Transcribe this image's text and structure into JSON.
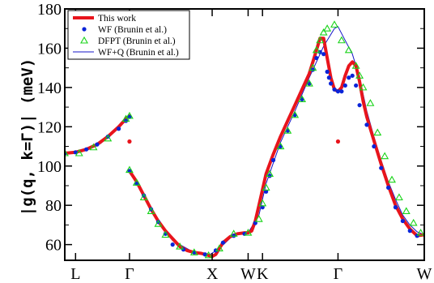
{
  "chart_data": {
    "type": "line",
    "title": "",
    "xlabel": "",
    "ylabel": "|g(q, k=Γ)| (meV)",
    "ylim": [
      52,
      180
    ],
    "yticks": [
      60,
      80,
      100,
      120,
      140,
      160,
      180
    ],
    "xlim": [
      0,
      100
    ],
    "xticks": [
      {
        "label": "L",
        "x": 3
      },
      {
        "label": "Γ",
        "x": 18
      },
      {
        "label": "X",
        "x": 41
      },
      {
        "label": "W",
        "x": 51
      },
      {
        "label": "K",
        "x": 55
      },
      {
        "label": "Γ",
        "x": 76
      },
      {
        "label": "W",
        "x": 100
      }
    ],
    "grid": false,
    "legend_position": "top-left",
    "colors": {
      "this_work": "#e8141c",
      "wf": "#0a24d8",
      "dfpt": "#18d418",
      "wfq": "#1414c8"
    },
    "series": [
      {
        "name": "This work",
        "style": "thick-line",
        "segments": [
          [
            [
              0,
              106.5
            ],
            [
              3,
              107
            ],
            [
              6,
              108.5
            ],
            [
              9,
              111
            ],
            [
              12,
              115
            ],
            [
              15,
              120
            ],
            [
              17,
              124
            ],
            [
              18,
              125.5
            ]
          ],
          [
            [
              18,
              97.5
            ],
            [
              20,
              92
            ],
            [
              22,
              85
            ],
            [
              24,
              78
            ],
            [
              26,
              72
            ],
            [
              28,
              67
            ],
            [
              30,
              63
            ],
            [
              32,
              59
            ],
            [
              34,
              57
            ],
            [
              36,
              56
            ],
            [
              38,
              55.5
            ],
            [
              40,
              54.5
            ],
            [
              41,
              54
            ],
            [
              42,
              55
            ],
            [
              43,
              58
            ],
            [
              44,
              61
            ],
            [
              46,
              64
            ],
            [
              48,
              65.5
            ],
            [
              50,
              66
            ],
            [
              51,
              66
            ],
            [
              52,
              67
            ],
            [
              53,
              72
            ],
            [
              54,
              80
            ],
            [
              55,
              88
            ],
            [
              56,
              96
            ],
            [
              58,
              106
            ],
            [
              60,
              115
            ],
            [
              62,
              123
            ],
            [
              64,
              131
            ],
            [
              66,
              139
            ],
            [
              68,
              147
            ],
            [
              69,
              153
            ],
            [
              70,
              159
            ],
            [
              71,
              165
            ],
            [
              72,
              165
            ],
            [
              73,
              155
            ],
            [
              74,
              145
            ],
            [
              75,
              139
            ],
            [
              76,
              138
            ],
            [
              77,
              140
            ],
            [
              78,
              146
            ],
            [
              79,
              151
            ],
            [
              80,
              153
            ],
            [
              81,
              151
            ],
            [
              82,
              143
            ],
            [
              83,
              133
            ],
            [
              84,
              125
            ],
            [
              86,
              113
            ],
            [
              88,
              101
            ],
            [
              90,
              90
            ],
            [
              92,
              80
            ],
            [
              94,
              73
            ],
            [
              96,
              68
            ],
            [
              98,
              64.5
            ],
            [
              100,
              65
            ]
          ]
        ],
        "isolated_points": [
          [
            18,
            112.5
          ],
          [
            76,
            112.5
          ]
        ]
      },
      {
        "name": "WF (Brunin et al.)",
        "style": "filled-circle",
        "points": [
          [
            0,
            106.5
          ],
          [
            3,
            107
          ],
          [
            6,
            108.5
          ],
          [
            9,
            111
          ],
          [
            12,
            115
          ],
          [
            15,
            119
          ],
          [
            17,
            123
          ],
          [
            18,
            125
          ],
          [
            18,
            97.5
          ],
          [
            20,
            91
          ],
          [
            22,
            85
          ],
          [
            24,
            78
          ],
          [
            26,
            71.5
          ],
          [
            28,
            65.5
          ],
          [
            30,
            60
          ],
          [
            33,
            57.5
          ],
          [
            36,
            56
          ],
          [
            39,
            55
          ],
          [
            42,
            57
          ],
          [
            44,
            61
          ],
          [
            47,
            64.5
          ],
          [
            50,
            65.5
          ],
          [
            53,
            71
          ],
          [
            55,
            79
          ],
          [
            56,
            87
          ],
          [
            57,
            95
          ],
          [
            58,
            103
          ],
          [
            60,
            110
          ],
          [
            62,
            118
          ],
          [
            64,
            126
          ],
          [
            66,
            134
          ],
          [
            68,
            142
          ],
          [
            69,
            149
          ],
          [
            70,
            155
          ],
          [
            71,
            158
          ],
          [
            72,
            157
          ],
          [
            73,
            148
          ],
          [
            73.5,
            145
          ],
          [
            74,
            142
          ],
          [
            75,
            139
          ],
          [
            76,
            138
          ],
          [
            77,
            138
          ],
          [
            78,
            141
          ],
          [
            79,
            145
          ],
          [
            80,
            146
          ],
          [
            81,
            141
          ],
          [
            82,
            131
          ],
          [
            84,
            121
          ],
          [
            86,
            110
          ],
          [
            88,
            99
          ],
          [
            90,
            89
          ],
          [
            92,
            79
          ],
          [
            94,
            72
          ],
          [
            96,
            67
          ],
          [
            98,
            64.5
          ]
        ]
      },
      {
        "name": "DFPT (Brunin et al.)",
        "style": "open-triangle",
        "points": [
          [
            0,
            106.5
          ],
          [
            4,
            106.5
          ],
          [
            8,
            109.5
          ],
          [
            12,
            114
          ],
          [
            17,
            124
          ],
          [
            18,
            125.5
          ],
          [
            18,
            98
          ],
          [
            20,
            91.5
          ],
          [
            22,
            84
          ],
          [
            24,
            77
          ],
          [
            26,
            70.5
          ],
          [
            28,
            65
          ],
          [
            32,
            59
          ],
          [
            36,
            56
          ],
          [
            40,
            54.5
          ],
          [
            43,
            58
          ],
          [
            47,
            65.5
          ],
          [
            51,
            66
          ],
          [
            54,
            73
          ],
          [
            55,
            81
          ],
          [
            56,
            89
          ],
          [
            57,
            96
          ],
          [
            60,
            110
          ],
          [
            62,
            118
          ],
          [
            64,
            126
          ],
          [
            66,
            134
          ],
          [
            68,
            142
          ],
          [
            69,
            150
          ],
          [
            70,
            159
          ],
          [
            71,
            164
          ],
          [
            72,
            168
          ],
          [
            73,
            170
          ],
          [
            75,
            172
          ],
          [
            77,
            164
          ],
          [
            79,
            159
          ],
          [
            81,
            151
          ],
          [
            82,
            146
          ],
          [
            83,
            140
          ],
          [
            85,
            132
          ],
          [
            87,
            117
          ],
          [
            89,
            105
          ],
          [
            91,
            93
          ],
          [
            93,
            84
          ],
          [
            95,
            77
          ],
          [
            97,
            71
          ],
          [
            99,
            66
          ]
        ]
      },
      {
        "name": "WF+Q (Brunin et al.)",
        "style": "thin-line",
        "points": [
          [
            0,
            106.5
          ],
          [
            5,
            107.5
          ],
          [
            10,
            111.5
          ],
          [
            15,
            119.5
          ],
          [
            18,
            125.5
          ],
          [
            18,
            98
          ],
          [
            22,
            85
          ],
          [
            26,
            72
          ],
          [
            30,
            62
          ],
          [
            35,
            57
          ],
          [
            40,
            54.5
          ],
          [
            43,
            58
          ],
          [
            47,
            65
          ],
          [
            51,
            66
          ],
          [
            54,
            75
          ],
          [
            56,
            91
          ],
          [
            60,
            112
          ],
          [
            64,
            128
          ],
          [
            68,
            145
          ],
          [
            72,
            161
          ],
          [
            75,
            170
          ],
          [
            76,
            171
          ],
          [
            78,
            164
          ],
          [
            80,
            157
          ],
          [
            82,
            145
          ],
          [
            84,
            128
          ],
          [
            86,
            115
          ],
          [
            88,
            103
          ],
          [
            90,
            92
          ],
          [
            92,
            83
          ],
          [
            94,
            75
          ],
          [
            96,
            70
          ],
          [
            98,
            66.5
          ],
          [
            100,
            65
          ]
        ]
      }
    ]
  }
}
